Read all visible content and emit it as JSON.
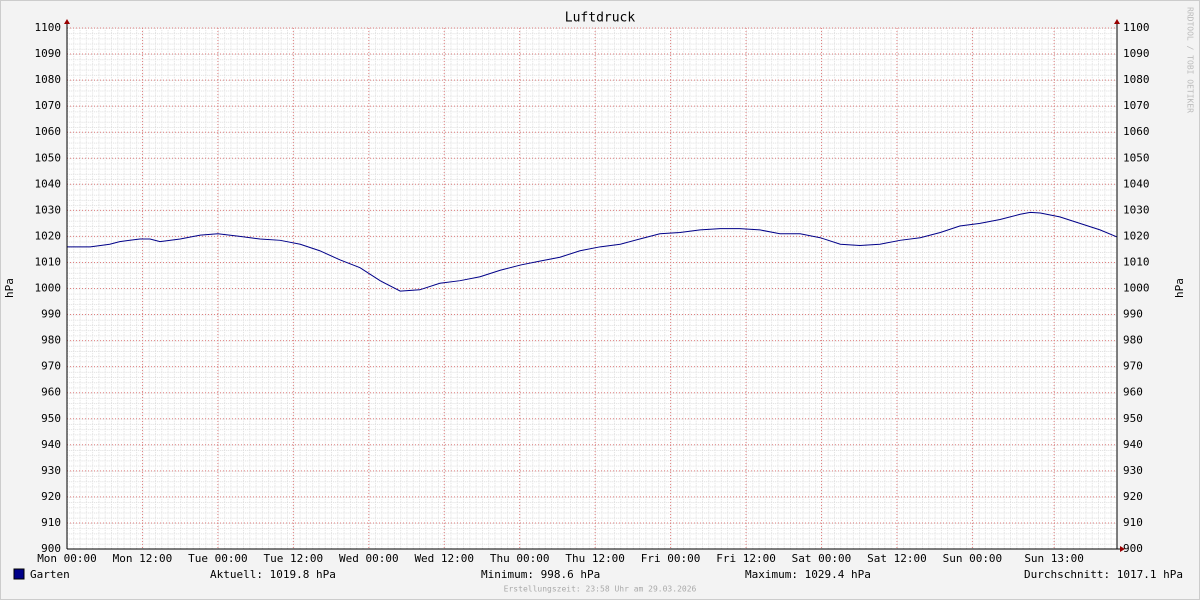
{
  "chart_data": {
    "type": "line",
    "title": "Luftdruck",
    "ylabel": "hPa",
    "y2label": "hPa",
    "watermark": "RRDTOOL / TOBI OETIKER",
    "footer": "Erstellungszeit: 23:58 Uhr am 29.03.2026",
    "xlim": [
      0,
      167
    ],
    "xticks": [
      {
        "value": 0,
        "label": "Mon 00:00"
      },
      {
        "value": 12,
        "label": "Mon 12:00"
      },
      {
        "value": 24,
        "label": "Tue 00:00"
      },
      {
        "value": 36,
        "label": "Tue 12:00"
      },
      {
        "value": 48,
        "label": "Wed 00:00"
      },
      {
        "value": 60,
        "label": "Wed 12:00"
      },
      {
        "value": 72,
        "label": "Thu 00:00"
      },
      {
        "value": 84,
        "label": "Thu 12:00"
      },
      {
        "value": 96,
        "label": "Fri 00:00"
      },
      {
        "value": 108,
        "label": "Fri 12:00"
      },
      {
        "value": 120,
        "label": "Sat 00:00"
      },
      {
        "value": 132,
        "label": "Sat 12:00"
      },
      {
        "value": 144,
        "label": "Sun 00:00"
      },
      {
        "value": 157,
        "label": "Sun 13:00"
      }
    ],
    "ylim": [
      900,
      1100
    ],
    "yticks": [
      900,
      910,
      920,
      930,
      940,
      950,
      960,
      970,
      980,
      990,
      1000,
      1010,
      1020,
      1030,
      1040,
      1050,
      1060,
      1070,
      1080,
      1090,
      1100
    ],
    "grid": true,
    "x": [
      0,
      3.7,
      6.8,
      8.4,
      11.6,
      13.2,
      14.8,
      18.0,
      21.2,
      24.0,
      27.5,
      30.7,
      33.9,
      37.1,
      40.2,
      43.4,
      46.6,
      49.8,
      53.0,
      56.1,
      59.3,
      62.5,
      65.7,
      68.9,
      72.1,
      75.2,
      78.4,
      81.6,
      84.8,
      88.0,
      91.1,
      94.3,
      97.5,
      100.7,
      103.9,
      107.0,
      110.2,
      113.4,
      116.6,
      119.8,
      123.0,
      126.1,
      129.3,
      132.5,
      135.7,
      138.9,
      142.0,
      145.2,
      148.4,
      151.6,
      153.2,
      154.8,
      157.9,
      161.1,
      164.3,
      167
    ],
    "series": [
      {
        "name": "Garten",
        "color": "#000088",
        "values": [
          1016,
          1016,
          1017,
          1018,
          1019,
          1019,
          1018,
          1019,
          1020.5,
          1021,
          1020,
          1019,
          1018.5,
          1017,
          1014.5,
          1011,
          1008,
          1003,
          999,
          999.5,
          1002,
          1003,
          1004.5,
          1007,
          1009,
          1010.5,
          1012,
          1014.5,
          1016,
          1017,
          1019,
          1021,
          1021.5,
          1022.5,
          1023,
          1023,
          1022.5,
          1021,
          1021,
          1019.5,
          1017,
          1016.5,
          1017,
          1018.5,
          1019.5,
          1021.5,
          1024,
          1025,
          1026.5,
          1028.5,
          1029.2,
          1029,
          1027.5,
          1025,
          1022.5,
          1019.8
        ]
      }
    ],
    "legend_stats": [
      "Aktuell: 1019.8 hPa",
      "Minimum: 998.6 hPa",
      "Maximum: 1029.4 hPa",
      "Durchschnitt: 1017.1 hPa"
    ]
  }
}
